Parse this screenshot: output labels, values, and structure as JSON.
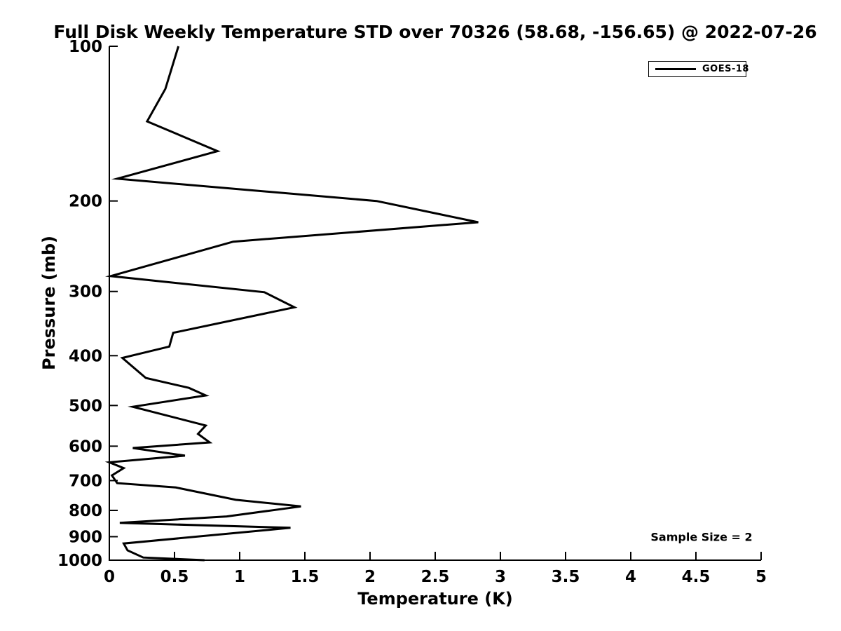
{
  "title": "Full Disk Weekly Temperature STD over 70326 (58.68, -156.65) @ 2022-07-26",
  "annotations": {
    "sample_size": "Sample Size = 2"
  },
  "legend": {
    "position": "top-right",
    "entries": [
      {
        "label": "GOES-18",
        "color": "#000000"
      }
    ]
  },
  "colors": {
    "line": "#000000",
    "axis": "#000000",
    "text": "#000000",
    "background": "#ffffff"
  },
  "chart_data": {
    "type": "line",
    "title": "Full Disk Weekly Temperature STD over 70326 (58.68, -156.65) @ 2022-07-26",
    "xlabel": "Temperature (K)",
    "ylabel": "Pressure (mb)",
    "xlim": [
      0,
      5
    ],
    "ylim": [
      100,
      1000
    ],
    "y_scale": "log",
    "y_inverted": true,
    "grid": false,
    "legend_position": "top-right",
    "x_ticks": [
      0,
      0.5,
      1,
      1.5,
      2,
      2.5,
      3,
      3.5,
      4,
      4.5,
      5
    ],
    "x_tick_labels": [
      "0",
      "0.5",
      "1",
      "1.5",
      "2",
      "2.5",
      "3",
      "3.5",
      "4",
      "4.5",
      "5"
    ],
    "y_ticks": [
      100,
      200,
      300,
      400,
      500,
      600,
      700,
      800,
      900,
      1000
    ],
    "y_tick_labels": [
      "100",
      "200",
      "300",
      "400",
      "500",
      "600",
      "700",
      "800",
      "900",
      "1000"
    ],
    "series": [
      {
        "name": "GOES-18",
        "color": "#000000",
        "line_width": 3,
        "points": [
          {
            "t": 0.53,
            "p": 100
          },
          {
            "t": 0.43,
            "p": 121
          },
          {
            "t": 0.29,
            "p": 140
          },
          {
            "t": 0.83,
            "p": 160
          },
          {
            "t": 0.06,
            "p": 181
          },
          {
            "t": 2.05,
            "p": 200
          },
          {
            "t": 2.83,
            "p": 220
          },
          {
            "t": 0.95,
            "p": 240
          },
          {
            "t": 0.01,
            "p": 280
          },
          {
            "t": 1.19,
            "p": 301
          },
          {
            "t": 1.42,
            "p": 322
          },
          {
            "t": 0.49,
            "p": 361
          },
          {
            "t": 0.46,
            "p": 384
          },
          {
            "t": 0.1,
            "p": 404
          },
          {
            "t": 0.28,
            "p": 442
          },
          {
            "t": 0.61,
            "p": 462
          },
          {
            "t": 0.74,
            "p": 478
          },
          {
            "t": 0.18,
            "p": 503
          },
          {
            "t": 0.74,
            "p": 547
          },
          {
            "t": 0.68,
            "p": 568
          },
          {
            "t": 0.77,
            "p": 590
          },
          {
            "t": 0.18,
            "p": 605
          },
          {
            "t": 0.58,
            "p": 626
          },
          {
            "t": 0.0,
            "p": 645
          },
          {
            "t": 0.11,
            "p": 662
          },
          {
            "t": 0.02,
            "p": 684
          },
          {
            "t": 0.06,
            "p": 708
          },
          {
            "t": 0.51,
            "p": 722
          },
          {
            "t": 0.97,
            "p": 763
          },
          {
            "t": 1.47,
            "p": 786
          },
          {
            "t": 0.9,
            "p": 822
          },
          {
            "t": 0.08,
            "p": 846
          },
          {
            "t": 1.39,
            "p": 865
          },
          {
            "t": 0.11,
            "p": 928
          },
          {
            "t": 0.14,
            "p": 957
          },
          {
            "t": 0.26,
            "p": 988
          },
          {
            "t": 0.73,
            "p": 1000
          }
        ]
      }
    ]
  }
}
